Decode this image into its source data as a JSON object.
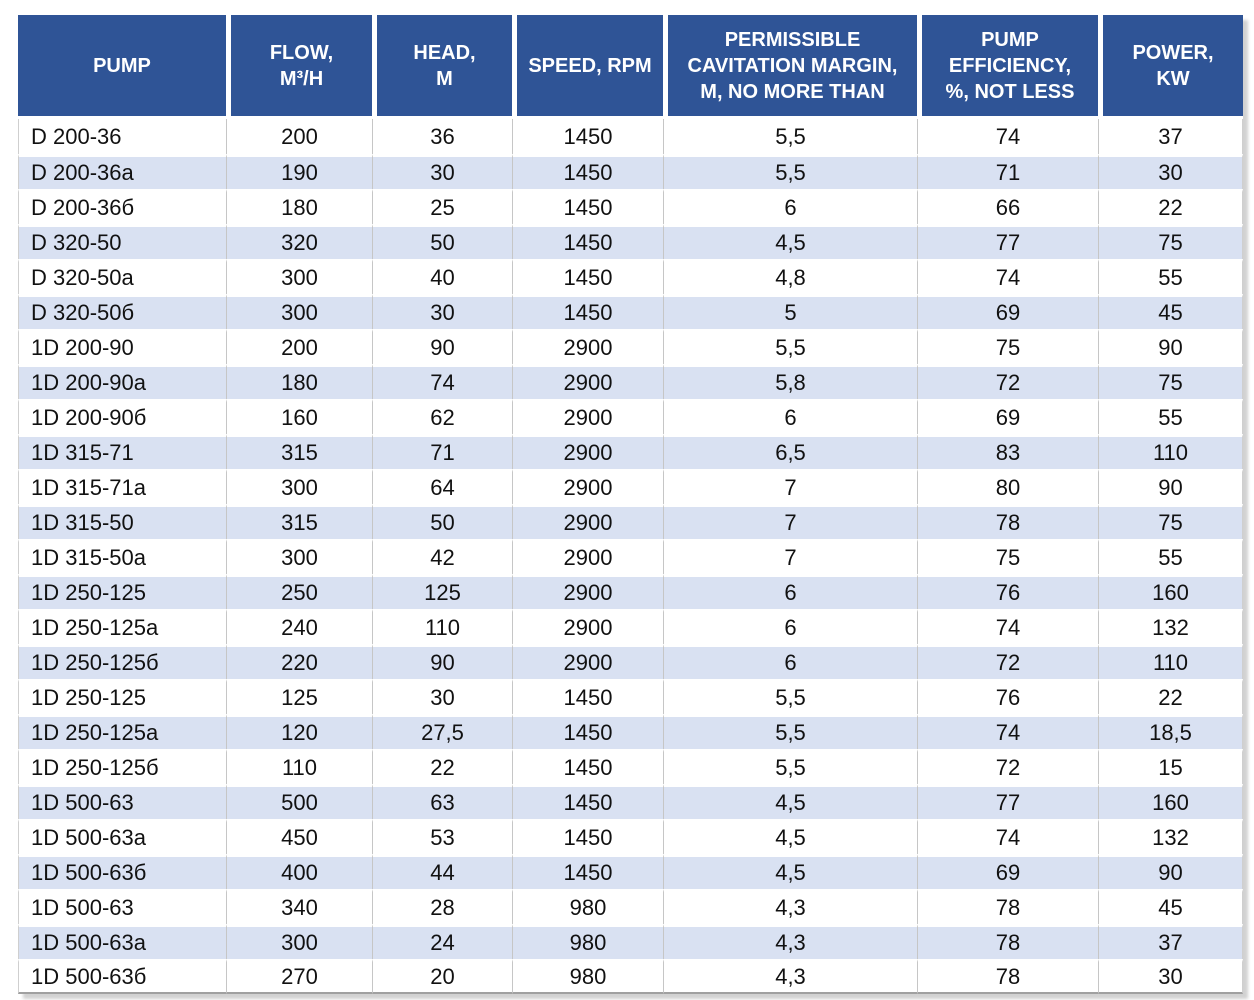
{
  "colors": {
    "header_bg": "#2F5496",
    "header_text": "#FFFFFF",
    "row_bg": "#FFFFFF",
    "row_alt_bg": "#D9E1F2",
    "grid_line": "#C6C6C6"
  },
  "table": {
    "columns": [
      {
        "key": "pump",
        "label": "PUMP"
      },
      {
        "key": "flow",
        "label": "FLOW,\nM³/H"
      },
      {
        "key": "head",
        "label": "HEAD,\nM"
      },
      {
        "key": "speed",
        "label": "SPEED, RPM"
      },
      {
        "key": "cavitation",
        "label": "PERMISSIBLE\nCAVITATION MARGIN,\nM, NO MORE THAN"
      },
      {
        "key": "efficiency",
        "label": "PUMP\nEFFICIENCY,\n%, NOT LESS"
      },
      {
        "key": "power",
        "label": "POWER,\nKW"
      }
    ],
    "rows": [
      [
        "D 200-36",
        "200",
        "36",
        "1450",
        "5,5",
        "74",
        "37"
      ],
      [
        "D 200-36a",
        "190",
        "30",
        "1450",
        "5,5",
        "71",
        "30"
      ],
      [
        "D 200-36б",
        "180",
        "25",
        "1450",
        "6",
        "66",
        "22"
      ],
      [
        "D 320-50",
        "320",
        "50",
        "1450",
        "4,5",
        "77",
        "75"
      ],
      [
        "D 320-50a",
        "300",
        "40",
        "1450",
        "4,8",
        "74",
        "55"
      ],
      [
        "D 320-50б",
        "300",
        "30",
        "1450",
        "5",
        "69",
        "45"
      ],
      [
        "1D 200-90",
        "200",
        "90",
        "2900",
        "5,5",
        "75",
        "90"
      ],
      [
        "1D 200-90a",
        "180",
        "74",
        "2900",
        "5,8",
        "72",
        "75"
      ],
      [
        "1D 200-90б",
        "160",
        "62",
        "2900",
        "6",
        "69",
        "55"
      ],
      [
        "1D 315-71",
        "315",
        "71",
        "2900",
        "6,5",
        "83",
        "110"
      ],
      [
        "1D 315-71a",
        "300",
        "64",
        "2900",
        "7",
        "80",
        "90"
      ],
      [
        "1D 315-50",
        "315",
        "50",
        "2900",
        "7",
        "78",
        "75"
      ],
      [
        "1D 315-50a",
        "300",
        "42",
        "2900",
        "7",
        "75",
        "55"
      ],
      [
        "1D 250-125",
        "250",
        "125",
        "2900",
        "6",
        "76",
        "160"
      ],
      [
        "1D 250-125a",
        "240",
        "110",
        "2900",
        "6",
        "74",
        "132"
      ],
      [
        "1D 250-125б",
        "220",
        "90",
        "2900",
        "6",
        "72",
        "110"
      ],
      [
        "1D 250-125",
        "125",
        "30",
        "1450",
        "5,5",
        "76",
        "22"
      ],
      [
        "1D 250-125a",
        "120",
        "27,5",
        "1450",
        "5,5",
        "74",
        "18,5"
      ],
      [
        "1D 250-125б",
        "110",
        "22",
        "1450",
        "5,5",
        "72",
        "15"
      ],
      [
        "1D 500-63",
        "500",
        "63",
        "1450",
        "4,5",
        "77",
        "160"
      ],
      [
        "1D 500-63a",
        "450",
        "53",
        "1450",
        "4,5",
        "74",
        "132"
      ],
      [
        "1D 500-63б",
        "400",
        "44",
        "1450",
        "4,5",
        "69",
        "90"
      ],
      [
        "1D 500-63",
        "340",
        "28",
        "980",
        "4,3",
        "78",
        "45"
      ],
      [
        "1D 500-63a",
        "300",
        "24",
        "980",
        "4,3",
        "78",
        "37"
      ],
      [
        "1D 500-63б",
        "270",
        "20",
        "980",
        "4,3",
        "78",
        "30"
      ]
    ]
  }
}
